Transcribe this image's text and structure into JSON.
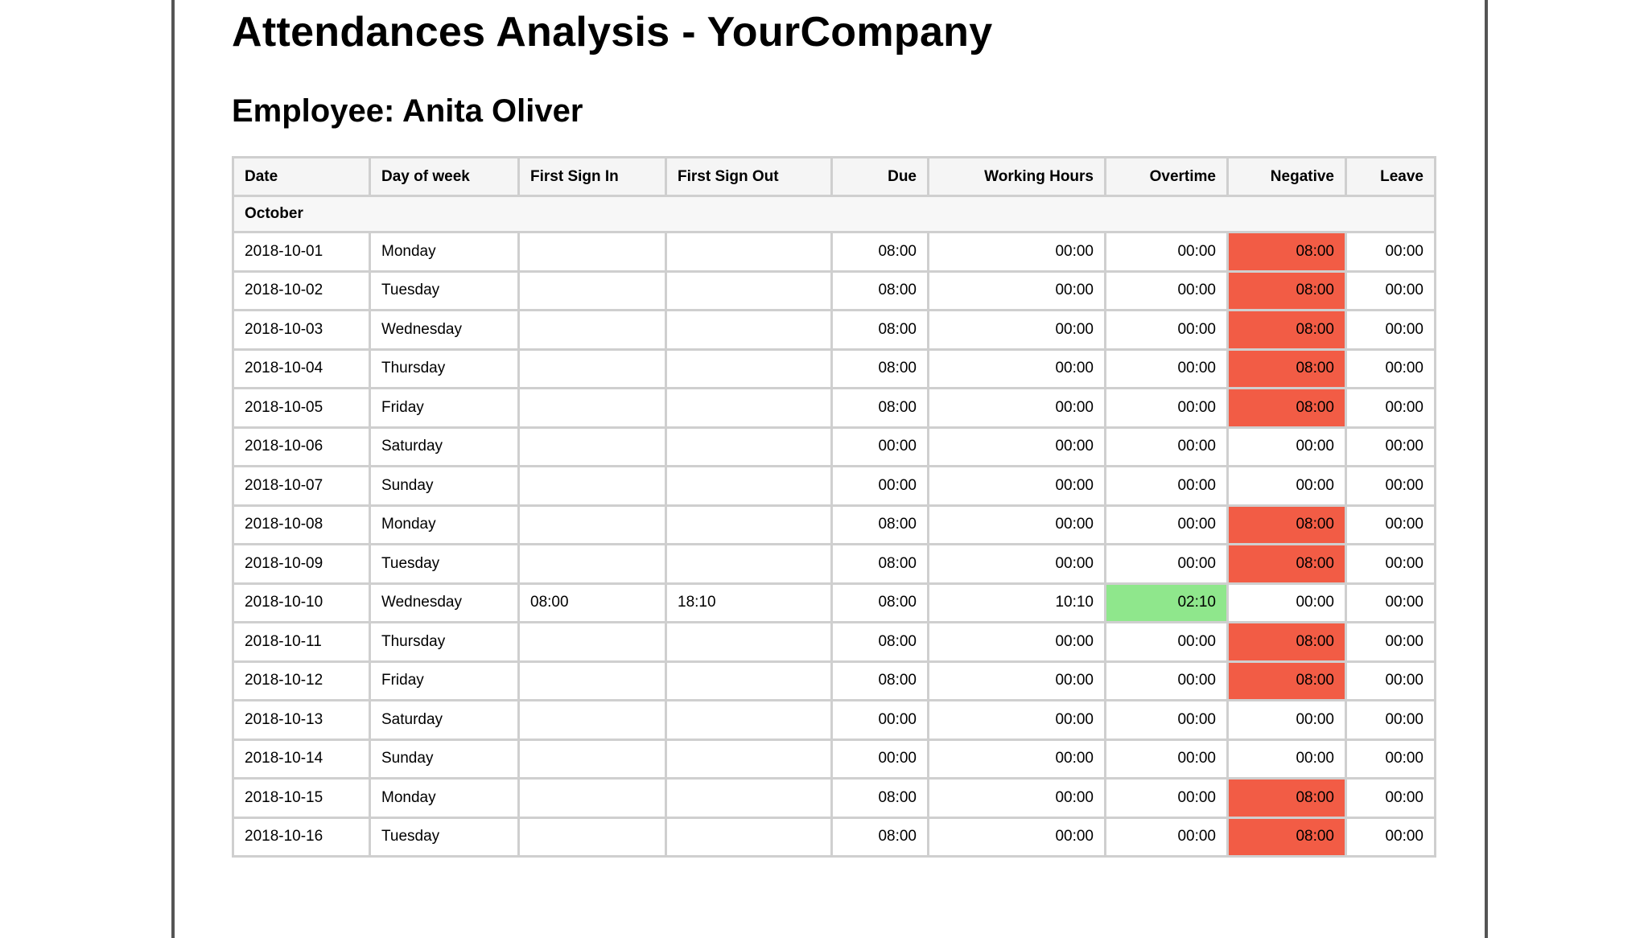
{
  "report": {
    "title": "Attendances Analysis - YourCompany",
    "employee_label": "Employee:",
    "employee_name": "Anita Oliver"
  },
  "colors": {
    "negative_highlight": "#f25c45",
    "overtime_highlight": "#8fe78c",
    "grid_line": "#cfcfcf"
  },
  "table": {
    "columns": [
      "Date",
      "Day of week",
      "First Sign In",
      "First Sign Out",
      "Due",
      "Working Hours",
      "Overtime",
      "Negative",
      "Leave"
    ],
    "month": "October",
    "rows": [
      {
        "date": "2018-10-01",
        "day": "Monday",
        "sign_in": "",
        "sign_out": "",
        "due": "08:00",
        "working": "00:00",
        "overtime": "00:00",
        "negative": "08:00",
        "leave": "00:00",
        "neg_flag": true,
        "ot_flag": false
      },
      {
        "date": "2018-10-02",
        "day": "Tuesday",
        "sign_in": "",
        "sign_out": "",
        "due": "08:00",
        "working": "00:00",
        "overtime": "00:00",
        "negative": "08:00",
        "leave": "00:00",
        "neg_flag": true,
        "ot_flag": false
      },
      {
        "date": "2018-10-03",
        "day": "Wednesday",
        "sign_in": "",
        "sign_out": "",
        "due": "08:00",
        "working": "00:00",
        "overtime": "00:00",
        "negative": "08:00",
        "leave": "00:00",
        "neg_flag": true,
        "ot_flag": false
      },
      {
        "date": "2018-10-04",
        "day": "Thursday",
        "sign_in": "",
        "sign_out": "",
        "due": "08:00",
        "working": "00:00",
        "overtime": "00:00",
        "negative": "08:00",
        "leave": "00:00",
        "neg_flag": true,
        "ot_flag": false
      },
      {
        "date": "2018-10-05",
        "day": "Friday",
        "sign_in": "",
        "sign_out": "",
        "due": "08:00",
        "working": "00:00",
        "overtime": "00:00",
        "negative": "08:00",
        "leave": "00:00",
        "neg_flag": true,
        "ot_flag": false
      },
      {
        "date": "2018-10-06",
        "day": "Saturday",
        "sign_in": "",
        "sign_out": "",
        "due": "00:00",
        "working": "00:00",
        "overtime": "00:00",
        "negative": "00:00",
        "leave": "00:00",
        "neg_flag": false,
        "ot_flag": false
      },
      {
        "date": "2018-10-07",
        "day": "Sunday",
        "sign_in": "",
        "sign_out": "",
        "due": "00:00",
        "working": "00:00",
        "overtime": "00:00",
        "negative": "00:00",
        "leave": "00:00",
        "neg_flag": false,
        "ot_flag": false
      },
      {
        "date": "2018-10-08",
        "day": "Monday",
        "sign_in": "",
        "sign_out": "",
        "due": "08:00",
        "working": "00:00",
        "overtime": "00:00",
        "negative": "08:00",
        "leave": "00:00",
        "neg_flag": true,
        "ot_flag": false
      },
      {
        "date": "2018-10-09",
        "day": "Tuesday",
        "sign_in": "",
        "sign_out": "",
        "due": "08:00",
        "working": "00:00",
        "overtime": "00:00",
        "negative": "08:00",
        "leave": "00:00",
        "neg_flag": true,
        "ot_flag": false
      },
      {
        "date": "2018-10-10",
        "day": "Wednesday",
        "sign_in": "08:00",
        "sign_out": "18:10",
        "due": "08:00",
        "working": "10:10",
        "overtime": "02:10",
        "negative": "00:00",
        "leave": "00:00",
        "neg_flag": false,
        "ot_flag": true
      },
      {
        "date": "2018-10-11",
        "day": "Thursday",
        "sign_in": "",
        "sign_out": "",
        "due": "08:00",
        "working": "00:00",
        "overtime": "00:00",
        "negative": "08:00",
        "leave": "00:00",
        "neg_flag": true,
        "ot_flag": false
      },
      {
        "date": "2018-10-12",
        "day": "Friday",
        "sign_in": "",
        "sign_out": "",
        "due": "08:00",
        "working": "00:00",
        "overtime": "00:00",
        "negative": "08:00",
        "leave": "00:00",
        "neg_flag": true,
        "ot_flag": false
      },
      {
        "date": "2018-10-13",
        "day": "Saturday",
        "sign_in": "",
        "sign_out": "",
        "due": "00:00",
        "working": "00:00",
        "overtime": "00:00",
        "negative": "00:00",
        "leave": "00:00",
        "neg_flag": false,
        "ot_flag": false
      },
      {
        "date": "2018-10-14",
        "day": "Sunday",
        "sign_in": "",
        "sign_out": "",
        "due": "00:00",
        "working": "00:00",
        "overtime": "00:00",
        "negative": "00:00",
        "leave": "00:00",
        "neg_flag": false,
        "ot_flag": false
      },
      {
        "date": "2018-10-15",
        "day": "Monday",
        "sign_in": "",
        "sign_out": "",
        "due": "08:00",
        "working": "00:00",
        "overtime": "00:00",
        "negative": "08:00",
        "leave": "00:00",
        "neg_flag": true,
        "ot_flag": false
      },
      {
        "date": "2018-10-16",
        "day": "Tuesday",
        "sign_in": "",
        "sign_out": "",
        "due": "08:00",
        "working": "00:00",
        "overtime": "00:00",
        "negative": "08:00",
        "leave": "00:00",
        "neg_flag": true,
        "ot_flag": false
      }
    ]
  }
}
